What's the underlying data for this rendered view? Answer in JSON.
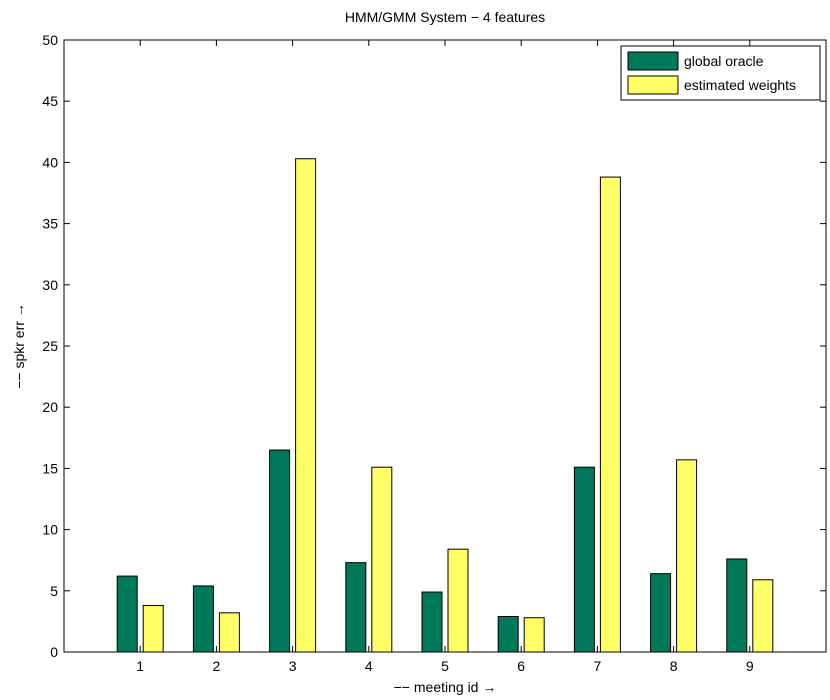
{
  "chart_data": {
    "type": "bar",
    "title": "HMM/GMM System − 4 features",
    "xlabel": "−− meeting id →",
    "ylabel": "−− spkr err →",
    "categories": [
      "1",
      "2",
      "3",
      "4",
      "5",
      "6",
      "7",
      "8",
      "9"
    ],
    "ylim": [
      0,
      50
    ],
    "yticks": [
      0,
      5,
      10,
      15,
      20,
      25,
      30,
      35,
      40,
      45,
      50
    ],
    "grid": false,
    "legend_position": "top-right",
    "series": [
      {
        "name": "global oracle",
        "color": "#00785a",
        "values": [
          6.2,
          5.4,
          16.5,
          7.3,
          4.9,
          2.9,
          15.1,
          6.4,
          7.6
        ]
      },
      {
        "name": "estimated weights",
        "color": "#ffff66",
        "values": [
          3.8,
          3.2,
          40.3,
          15.1,
          8.4,
          2.8,
          38.8,
          15.7,
          5.9
        ]
      }
    ]
  }
}
